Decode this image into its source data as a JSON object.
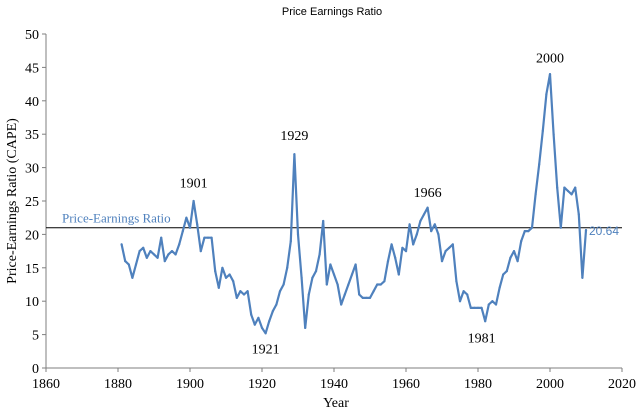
{
  "colors": {
    "series": "#4F81BD",
    "axis": "#7F7F7F",
    "reference_line": "#000000",
    "text": "#000000"
  },
  "chart_data": {
    "type": "line",
    "title": "Price Earnings Ratio",
    "xlabel": "Year",
    "ylabel": "Price-Earnings Ratio (CAPE)",
    "xlim": [
      1860,
      2020
    ],
    "ylim": [
      0,
      50
    ],
    "x_ticks": [
      1860,
      1880,
      1900,
      1920,
      1940,
      1960,
      1980,
      2000,
      2020
    ],
    "y_ticks": [
      0,
      5,
      10,
      15,
      20,
      25,
      30,
      35,
      40,
      45,
      50
    ],
    "grid": false,
    "series": [
      {
        "x": [
          1881,
          1882,
          1883,
          1884,
          1885,
          1886,
          1887,
          1888,
          1889,
          1890,
          1891,
          1892,
          1893,
          1894,
          1895,
          1896,
          1897,
          1898,
          1899,
          1900,
          1901,
          1902,
          1903,
          1904,
          1905,
          1906,
          1907,
          1908,
          1909,
          1910,
          1911,
          1912,
          1913,
          1914,
          1915,
          1916,
          1917,
          1918,
          1919,
          1920,
          1921,
          1922,
          1923,
          1924,
          1925,
          1926,
          1927,
          1928,
          1929,
          1930,
          1931,
          1932,
          1933,
          1934,
          1935,
          1936,
          1937,
          1938,
          1939,
          1940,
          1941,
          1942,
          1943,
          1944,
          1945,
          1946,
          1947,
          1948,
          1949,
          1950,
          1951,
          1952,
          1953,
          1954,
          1955,
          1956,
          1957,
          1958,
          1959,
          1960,
          1961,
          1962,
          1963,
          1964,
          1965,
          1966,
          1967,
          1968,
          1969,
          1970,
          1971,
          1972,
          1973,
          1974,
          1975,
          1976,
          1977,
          1978,
          1979,
          1980,
          1981,
          1982,
          1983,
          1984,
          1985,
          1986,
          1987,
          1988,
          1989,
          1990,
          1991,
          1992,
          1993,
          1994,
          1995,
          1996,
          1997,
          1998,
          1999,
          2000,
          2001,
          2002,
          2003,
          2004,
          2005,
          2006,
          2007,
          2008,
          2009,
          2010
        ],
        "values": [
          18.5,
          16.0,
          15.5,
          13.5,
          15.5,
          17.5,
          18.0,
          16.5,
          17.5,
          17.0,
          16.5,
          19.5,
          16.0,
          17.0,
          17.5,
          17.0,
          18.5,
          20.5,
          22.5,
          21.0,
          25.0,
          21.5,
          17.5,
          19.5,
          19.5,
          19.5,
          14.5,
          12.0,
          15.0,
          13.5,
          14.0,
          13.0,
          10.5,
          11.5,
          11.0,
          11.5,
          8.0,
          6.5,
          7.5,
          6.0,
          5.2,
          7.0,
          8.5,
          9.5,
          11.5,
          12.5,
          15.0,
          19.0,
          32.0,
          20.0,
          13.5,
          6.0,
          11.0,
          13.5,
          14.5,
          17.0,
          22.0,
          12.5,
          15.5,
          14.0,
          12.5,
          9.5,
          11.0,
          12.5,
          14.0,
          15.5,
          11.0,
          10.5,
          10.5,
          10.5,
          11.5,
          12.5,
          12.5,
          13.0,
          16.0,
          18.5,
          16.5,
          14.0,
          18.0,
          17.5,
          21.5,
          18.5,
          20.0,
          22.0,
          23.0,
          24.0,
          20.5,
          21.5,
          20.0,
          16.0,
          17.5,
          18.0,
          18.5,
          13.0,
          10.0,
          11.5,
          11.0,
          9.0,
          9.0,
          9.0,
          9.0,
          7.0,
          9.5,
          10.0,
          9.5,
          12.0,
          14.0,
          14.5,
          16.5,
          17.5,
          16.0,
          19.0,
          20.5,
          20.5,
          21.0,
          26.0,
          30.5,
          35.5,
          41.0,
          44.0,
          35.0,
          27.0,
          21.0,
          27.0,
          26.5,
          26.0,
          27.0,
          23.0,
          13.5,
          20.64
        ]
      }
    ],
    "annotations": [
      {
        "label": "1901",
        "x": 1901,
        "y": 25.5
      },
      {
        "label": "1921",
        "x": 1921,
        "y": 5.2
      },
      {
        "label": "1929",
        "x": 1929,
        "y": 32.6
      },
      {
        "label": "1966",
        "x": 1966,
        "y": 24.1
      },
      {
        "label": "1981",
        "x": 1981,
        "y": 6.8
      },
      {
        "label": "2000",
        "x": 2000,
        "y": 44.2
      }
    ],
    "reference_line": {
      "label": "Price-Earnings Ratio",
      "y": 21
    },
    "last_value_label": "20.64"
  }
}
